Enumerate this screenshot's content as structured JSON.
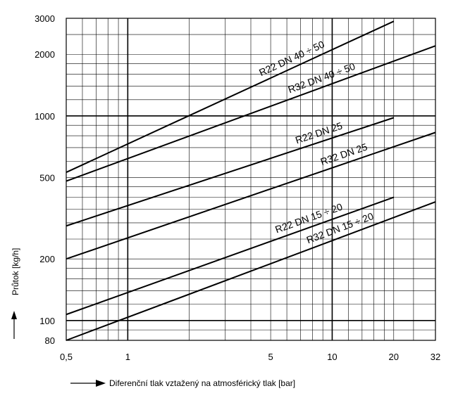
{
  "chart_data": {
    "type": "line",
    "x_scale": "log",
    "y_scale": "log",
    "xlim": [
      0.5,
      32
    ],
    "ylim": [
      80,
      3000
    ],
    "xlabel": "Diferenční tlak vztažený na atmosférický tlak [bar]",
    "ylabel": "Průtok [kg/h]",
    "x_tick_labels": [
      {
        "value": 0.5,
        "label": "0,5"
      },
      {
        "value": 1,
        "label": "1"
      },
      {
        "value": 5,
        "label": "5"
      },
      {
        "value": 10,
        "label": "10"
      },
      {
        "value": 20,
        "label": "20"
      },
      {
        "value": 32,
        "label": "32"
      }
    ],
    "y_tick_labels": [
      {
        "value": 80,
        "label": "80"
      },
      {
        "value": 100,
        "label": "100"
      },
      {
        "value": 200,
        "label": "200"
      },
      {
        "value": 500,
        "label": "500"
      },
      {
        "value": 1000,
        "label": "1000"
      },
      {
        "value": 2000,
        "label": "2000"
      },
      {
        "value": 3000,
        "label": "3000"
      }
    ],
    "x_gridlines": [
      0.6,
      0.7,
      0.8,
      0.9,
      1,
      2,
      3,
      4,
      5,
      6,
      7,
      8,
      9,
      10,
      12,
      14,
      16,
      18,
      20,
      25,
      32
    ],
    "y_gridlines": [
      80,
      90,
      100,
      120,
      140,
      160,
      180,
      200,
      250,
      300,
      350,
      400,
      450,
      500,
      600,
      700,
      800,
      900,
      1000,
      1200,
      1400,
      1600,
      1800,
      2000,
      2500,
      3000
    ],
    "grid": true,
    "series": [
      {
        "name": "R22  DN 40 ÷ 50",
        "points": [
          [
            0.5,
            530
          ],
          [
            20,
            2900
          ]
        ]
      },
      {
        "name": "R32  DN 40 ÷ 50",
        "points": [
          [
            0.5,
            480
          ],
          [
            32,
            2200
          ]
        ]
      },
      {
        "name": "R22 DN 25",
        "points": [
          [
            0.5,
            290
          ],
          [
            20,
            980
          ]
        ]
      },
      {
        "name": "R32 DN 25",
        "points": [
          [
            0.5,
            200
          ],
          [
            32,
            830
          ]
        ]
      },
      {
        "name": "R22  DN 15 ÷ 20",
        "points": [
          [
            0.5,
            107
          ],
          [
            20,
            400
          ]
        ]
      },
      {
        "name": "R32  DN 15 ÷ 20",
        "points": [
          [
            0.5,
            80
          ],
          [
            32,
            380
          ]
        ]
      }
    ]
  }
}
